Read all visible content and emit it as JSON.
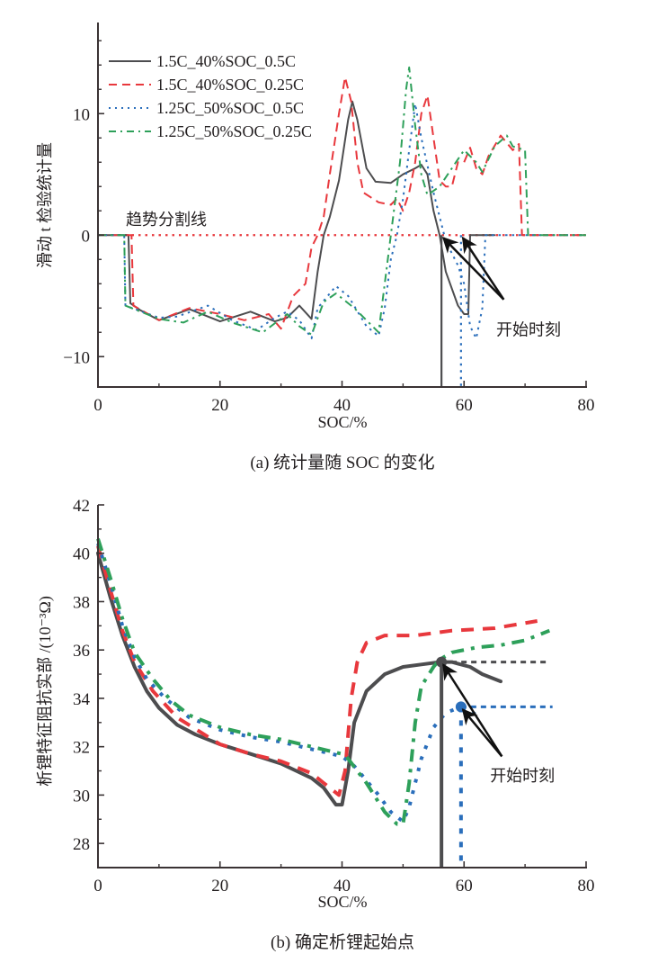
{
  "chart_data": [
    {
      "type": "line",
      "panel": "a",
      "title": "",
      "caption": "(a)  统计量随 SOC 的变化",
      "xlabel": "SOC/%",
      "ylabel": "滑动 t 检验统计量",
      "xlim": [
        0,
        80
      ],
      "ylim": [
        -12.5,
        17.5
      ],
      "xticks": [
        0,
        20,
        40,
        60,
        80
      ],
      "xminor": [
        10,
        30,
        50,
        70
      ],
      "yticks": [
        -10,
        0,
        10
      ],
      "yminor": [
        -8,
        -6,
        -4,
        -2,
        2,
        4,
        6,
        8,
        12,
        14,
        16
      ],
      "legend_position": "top-left",
      "grid": false,
      "series": [
        {
          "name": "1.5C_40%SOC_0.5C",
          "style": "solid",
          "color": "#4d4d4f",
          "x": [
            0,
            5,
            5.3,
            7,
            10,
            15,
            20,
            25,
            29,
            31,
            33,
            35,
            36,
            37,
            38,
            39.5,
            41,
            41.7,
            42.5,
            44,
            45.5,
            48,
            50,
            52,
            53,
            54,
            55,
            56,
            57,
            59,
            60,
            60.7,
            61,
            65
          ],
          "y": [
            0,
            0,
            -5.6,
            -6.2,
            -7,
            -6.1,
            -7.1,
            -6.3,
            -7.1,
            -6.8,
            -5.8,
            -6.9,
            -3,
            0,
            1.5,
            4.5,
            9.5,
            11,
            9.5,
            5.5,
            4.4,
            4.3,
            5,
            5.5,
            5.8,
            5,
            2,
            0,
            -3,
            -5.8,
            -6.5,
            -6.5,
            0,
            0
          ]
        },
        {
          "name": "1.5C_40%SOC_0.25C",
          "style": "dashed",
          "color": "#e8383d",
          "x": [
            0,
            5.5,
            5.8,
            10,
            15,
            20,
            24,
            28,
            30,
            32,
            34,
            35,
            36,
            37,
            38,
            39.5,
            40.5,
            41.5,
            42.5,
            43.5,
            46,
            48,
            49,
            50,
            51,
            52,
            53,
            54,
            55,
            56,
            57,
            58,
            59,
            60,
            61,
            62,
            63,
            64,
            66,
            68,
            69,
            69.5,
            80
          ],
          "y": [
            0,
            0,
            -5.8,
            -7,
            -6,
            -6.5,
            -7,
            -6.5,
            -7.7,
            -5,
            -4,
            -1,
            0,
            1.5,
            5,
            10,
            13,
            11,
            6,
            3.5,
            2.7,
            2.5,
            3,
            2,
            3.5,
            6,
            10,
            11.5,
            8,
            4.5,
            4,
            4,
            6,
            6,
            7.2,
            5.5,
            5,
            6.5,
            8.2,
            7,
            7.5,
            0,
            0
          ]
        },
        {
          "name": "1.25C_50%SOC_0.5C",
          "style": "dotted",
          "color": "#2a6ebb",
          "x": [
            0,
            4.3,
            4.5,
            10,
            13,
            18,
            22,
            26,
            29,
            31,
            33,
            35,
            36,
            39,
            41,
            44,
            46,
            47,
            48,
            49,
            50,
            51,
            52,
            53,
            55,
            57,
            59,
            60,
            61,
            62,
            63,
            63.5,
            66,
            80
          ],
          "y": [
            0,
            0,
            -5.8,
            -6.8,
            -6.7,
            -5.8,
            -7,
            -7.8,
            -6.8,
            -6.3,
            -7,
            -8.5,
            -6,
            -4.2,
            -5,
            -7.5,
            -8.3,
            -6,
            -2,
            0,
            3,
            7,
            10.8,
            8,
            3.5,
            -0.5,
            -2.5,
            -4,
            -7.5,
            -8.5,
            -6,
            0,
            0,
            0
          ]
        },
        {
          "name": "1.25C_50%SOC_0.25C",
          "style": "dashdot",
          "color": "#2ea05a",
          "x": [
            0,
            4.3,
            4.5,
            10,
            14,
            18,
            22,
            27,
            31,
            33,
            35,
            37,
            39,
            42,
            45,
            46,
            47,
            48,
            49.5,
            50.5,
            51,
            52,
            53,
            54,
            56,
            58,
            60,
            62,
            63,
            65,
            67,
            68,
            70,
            70.5,
            80
          ],
          "y": [
            0,
            0,
            -5.8,
            -6.9,
            -7.2,
            -6.3,
            -7.2,
            -8,
            -6.5,
            -7.5,
            -8.2,
            -5.5,
            -4.8,
            -6,
            -7.5,
            -8,
            -4,
            0,
            6,
            12,
            13.8,
            9,
            5,
            3.3,
            4,
            5.5,
            7,
            6,
            5.2,
            7.3,
            8.2,
            7.3,
            7,
            0,
            0
          ]
        }
      ],
      "reference_line": {
        "label": "趋势分割线",
        "y": 0,
        "style": "dotted",
        "color": "#e8383d"
      },
      "start_markers": [
        {
          "x": 56.3,
          "y": 0,
          "color": "#4d4d4f",
          "style": "solid"
        },
        {
          "x": 59.5,
          "y": 0,
          "color": "#2a6ebb",
          "style": "dotted"
        }
      ],
      "annotation": {
        "text": "开始时刻",
        "x": 66,
        "y": -7.8,
        "arrow_from": [
          66.5,
          -5.3
        ]
      }
    },
    {
      "type": "line",
      "panel": "b",
      "title": "",
      "caption": "(b)  确定析锂起始点",
      "xlabel": "SOC/%",
      "ylabel": "析锂特征阻抗实部 /(10⁻³Ω)",
      "xlim": [
        0,
        80
      ],
      "ylim": [
        27,
        42
      ],
      "xticks": [
        0,
        20,
        40,
        60,
        80
      ],
      "xminor": [
        10,
        30,
        50,
        70
      ],
      "yticks": [
        28,
        30,
        32,
        34,
        36,
        38,
        40,
        42
      ],
      "yminor": [
        29,
        31,
        33,
        35,
        37,
        39,
        41
      ],
      "grid": false,
      "series": [
        {
          "name": "1.5C_40%SOC_0.5C",
          "style": "solid",
          "color": "#4d4d4f",
          "x": [
            0,
            2,
            4,
            6,
            8,
            10,
            13,
            16,
            20,
            25,
            30,
            35,
            37,
            39,
            40,
            41,
            42,
            44,
            47,
            50,
            53,
            56,
            58,
            61,
            63,
            66
          ],
          "y": [
            40,
            38.2,
            36.6,
            35.3,
            34.3,
            33.6,
            32.9,
            32.5,
            32.1,
            31.7,
            31.3,
            30.7,
            30.3,
            29.6,
            29.6,
            31,
            33,
            34.3,
            35,
            35.3,
            35.4,
            35.5,
            35.5,
            35.3,
            35,
            34.7
          ]
        },
        {
          "name": "1.5C_40%SOC_0.25C",
          "style": "dashed",
          "color": "#e8383d",
          "x": [
            0,
            2,
            4,
            6,
            9,
            13,
            20,
            25,
            30,
            35,
            37,
            39.5,
            40.5,
            41.5,
            42.5,
            44,
            47,
            52,
            58,
            65,
            72
          ],
          "y": [
            40.3,
            38.5,
            36.8,
            35.5,
            34.3,
            33.2,
            32.1,
            31.7,
            31.4,
            30.9,
            30.5,
            30,
            31,
            34,
            35.5,
            36.3,
            36.6,
            36.6,
            36.8,
            36.9,
            37.2
          ]
        },
        {
          "name": "1.25C_50%SOC_0.5C",
          "style": "dotted",
          "color": "#2a6ebb",
          "x": [
            0,
            2,
            4,
            6,
            8,
            11,
            15,
            20,
            25,
            30,
            35,
            40,
            42,
            44,
            46,
            48,
            50,
            51,
            53,
            55,
            57,
            59,
            61,
            62
          ],
          "y": [
            40.4,
            38.8,
            37,
            35.7,
            34.8,
            34,
            33.2,
            32.7,
            32.4,
            32.2,
            31.9,
            31.6,
            31.2,
            30.6,
            30,
            29.3,
            28.9,
            29.5,
            31.5,
            32.8,
            33.4,
            33.6,
            33.5,
            33.3
          ]
        },
        {
          "name": "1.25C_50%SOC_0.25C",
          "style": "dashdot",
          "color": "#2ea05a",
          "x": [
            0,
            2,
            4,
            6,
            9,
            12,
            15,
            20,
            25,
            30,
            35,
            40,
            41,
            44,
            47,
            49,
            50,
            51,
            52,
            53,
            55,
            56,
            58,
            62,
            66,
            70,
            74
          ],
          "y": [
            40.6,
            39,
            37.3,
            35.9,
            34.8,
            33.9,
            33.3,
            32.8,
            32.5,
            32.3,
            32,
            31.7,
            31.5,
            30.5,
            29.3,
            28.8,
            28.8,
            30.5,
            33,
            34.5,
            35.3,
            35.6,
            35.9,
            36.1,
            36.2,
            36.4,
            36.8
          ]
        }
      ],
      "start_markers": [
        {
          "x": 56.3,
          "y": 35.5,
          "color": "#4d4d4f",
          "style": "solid",
          "hline_to": 74
        },
        {
          "x": 59.5,
          "y": 33.65,
          "color": "#2a6ebb",
          "style": "dotted",
          "hline_to": 74.5
        }
      ],
      "annotation": {
        "text": "开始时刻",
        "x": 65,
        "y": 30.8,
        "arrow_from": [
          66.2,
          31.6
        ]
      }
    }
  ]
}
